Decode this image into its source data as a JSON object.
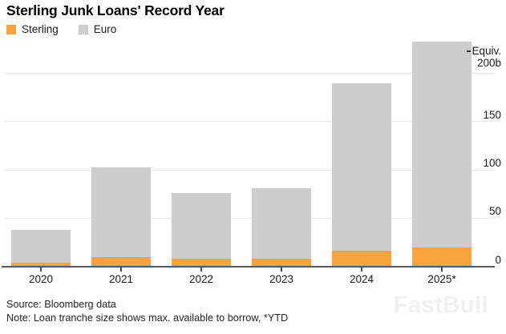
{
  "title": "Sterling Junk Loans' Record Year",
  "legend": [
    {
      "label": "Sterling",
      "color": "#F8A33C"
    },
    {
      "label": "Euro",
      "color": "#CDCDCD"
    }
  ],
  "chart_data": {
    "type": "bar",
    "stacked": true,
    "title": "Sterling Junk Loans' Record Year",
    "categories": [
      "2020",
      "2021",
      "2022",
      "2023",
      "2024",
      "2025*"
    ],
    "series": [
      {
        "name": "Sterling",
        "color": "#F8A33C",
        "values": [
          4,
          10,
          8,
          8,
          17,
          20
        ]
      },
      {
        "name": "Euro",
        "color": "#CDCDCD",
        "values": [
          34,
          93,
          68,
          73,
          173,
          213
        ]
      }
    ],
    "totals": [
      38,
      103,
      76,
      81,
      190,
      233
    ],
    "y_axis": {
      "side": "right",
      "unit_label": "Equiv.",
      "ticks": [
        {
          "v": 0,
          "label": "0"
        },
        {
          "v": 50,
          "label": "50"
        },
        {
          "v": 100,
          "label": "100"
        },
        {
          "v": 150,
          "label": "150"
        },
        {
          "v": 200,
          "label": "200b"
        }
      ],
      "ylim": [
        0,
        235
      ]
    },
    "grid": true,
    "legend_position": "top-left"
  },
  "footer": {
    "source": "Source: Bloomberg data",
    "note": "Note: Loan tranche size shows max. available to borrow, *YTD"
  },
  "watermark": "FastBull",
  "colors": {
    "sterling": "#F8A33C",
    "euro": "#CDCDCD",
    "gridline": "#E9E9E9",
    "axis_line": "#58595B",
    "text": "#1A1A1A",
    "background": "#FFFFFF"
  }
}
